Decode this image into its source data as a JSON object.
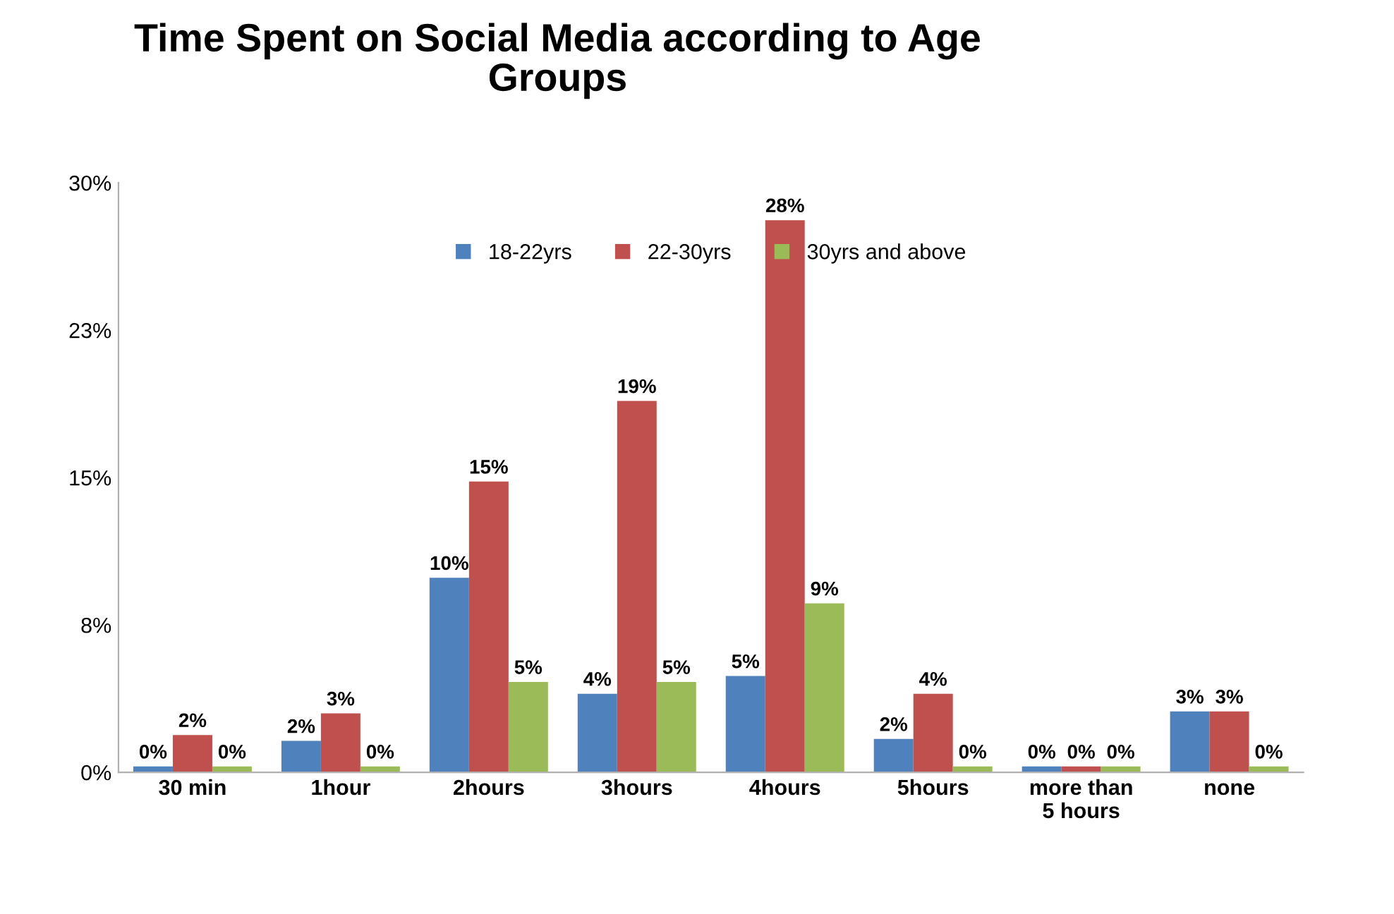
{
  "chart_data": {
    "type": "bar",
    "title": "Time Spent on Social Media according to Age\nGroups",
    "categories": [
      "30 min",
      "1hour",
      "2hours",
      "3hours",
      "4hours",
      "5hours",
      "more than\n5 hours",
      "none"
    ],
    "series": [
      {
        "name": "18-22yrs",
        "color": "#4f81bd",
        "values": [
          0.3,
          1.6,
          9.9,
          4.0,
          4.9,
          1.7,
          0.3,
          3.1
        ],
        "value_labels": [
          "0%",
          "2%",
          "10%",
          "4%",
          "5%",
          "2%",
          "0%",
          "3%"
        ]
      },
      {
        "name": "22-30yrs",
        "color": "#c0504d",
        "values": [
          1.9,
          3.0,
          14.8,
          18.9,
          28.1,
          4.0,
          0.3,
          3.1
        ],
        "value_labels": [
          "2%",
          "3%",
          "15%",
          "19%",
          "28%",
          "4%",
          "0%",
          "3%"
        ]
      },
      {
        "name": "30yrs and above",
        "color": "#9bbb59",
        "values": [
          0.3,
          0.3,
          4.6,
          4.6,
          8.6,
          0.3,
          0.3,
          0.3
        ],
        "value_labels": [
          "0%",
          "0%",
          "5%",
          "5%",
          "9%",
          "0%",
          "0%",
          "0%"
        ]
      }
    ],
    "ylim": [
      0,
      30
    ],
    "yticks": [
      {
        "value": 0,
        "label": "0%"
      },
      {
        "value": 7.5,
        "label": "8%"
      },
      {
        "value": 15,
        "label": "15%"
      },
      {
        "value": 22.5,
        "label": "23%"
      },
      {
        "value": 30,
        "label": "30%"
      }
    ],
    "legend": "top"
  }
}
